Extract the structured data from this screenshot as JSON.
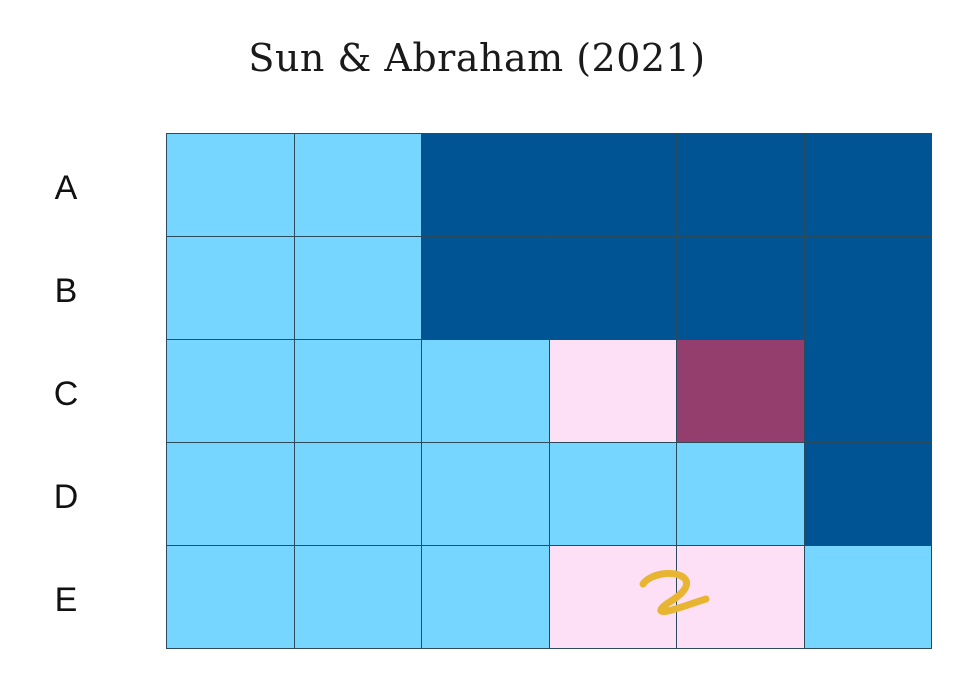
{
  "title": "Sun & Abraham (2021)",
  "rows": [
    "A",
    "B",
    "C",
    "D",
    "E"
  ],
  "colors": {
    "untreated": "#76d6ff",
    "treated": "#005493",
    "highlight_light": "#fde0f6",
    "highlight_dark": "#943e6d",
    "annotation": "#e7b531"
  },
  "grid": [
    [
      "untreated",
      "untreated",
      "treated",
      "treated",
      "treated",
      "treated"
    ],
    [
      "untreated",
      "untreated",
      "treated",
      "treated",
      "treated",
      "treated"
    ],
    [
      "untreated",
      "untreated",
      "untreated",
      "highlight_light",
      "highlight_dark",
      "treated"
    ],
    [
      "untreated",
      "untreated",
      "untreated",
      "untreated",
      "untreated",
      "treated"
    ],
    [
      "untreated",
      "untreated",
      "untreated",
      "highlight_light",
      "highlight_light",
      "untreated"
    ]
  ],
  "annotation": {
    "text": "2",
    "kind": "handwritten"
  }
}
